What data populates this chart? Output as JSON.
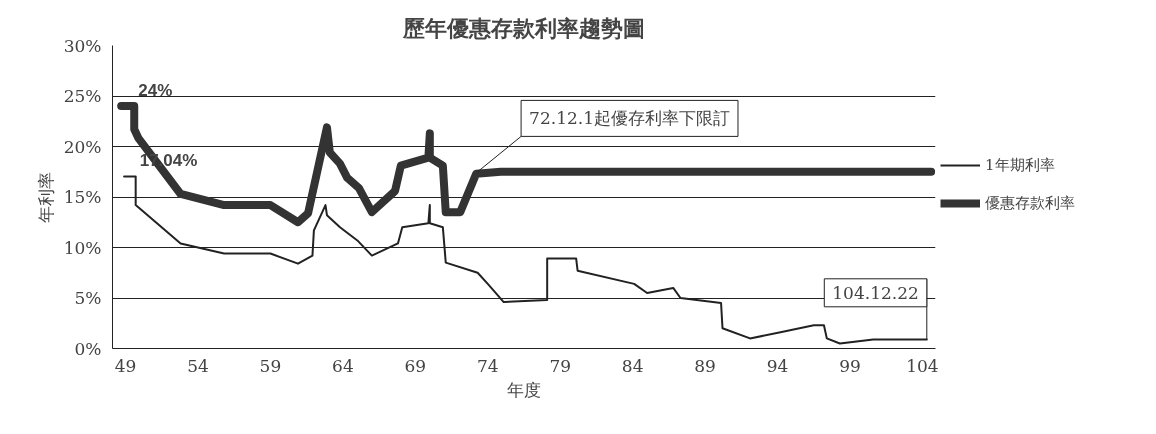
{
  "chart_data": {
    "type": "line",
    "title": "歷年優惠存款利率趨勢圖",
    "xlabel": "年度",
    "ylabel": "年利率",
    "xlim": [
      48.1,
      104.9
    ],
    "ylim": [
      0,
      30
    ],
    "xticks": [
      49,
      54,
      59,
      64,
      69,
      74,
      79,
      84,
      89,
      94,
      99,
      104
    ],
    "yticks": [
      {
        "value": 0,
        "label": "0%"
      },
      {
        "value": 5,
        "label": "5%"
      },
      {
        "value": 10,
        "label": "10%"
      },
      {
        "value": 15,
        "label": "15%"
      },
      {
        "value": 20,
        "label": "20%"
      },
      {
        "value": 25,
        "label": "25%"
      },
      {
        "value": 30,
        "label": "30%"
      }
    ],
    "grid": "y",
    "legend": "right",
    "marker": "none",
    "series": [
      {
        "name": "1年期利率",
        "color": "#222222",
        "x": [
          48.9,
          49.7,
          49.7,
          52.8,
          55.8,
          59.0,
          60.9,
          61.9,
          62.0,
          62.8,
          62.9,
          63.8,
          65.0,
          66.0,
          67.8,
          68.1,
          69.9,
          70.0,
          70.0,
          70.9,
          71.1,
          73.3,
          74.0,
          75.1,
          78.1,
          78.1,
          80.1,
          80.2,
          84.1,
          85.0,
          86.8,
          87.3,
          90.1,
          90.2,
          92.1,
          94.2,
          96.5,
          97.2,
          97.4,
          98.3,
          100.6,
          104.3
        ],
        "values": [
          17.04,
          17.04,
          14.2,
          10.4,
          9.4,
          9.4,
          8.4,
          9.2,
          11.7,
          14.2,
          13.2,
          12.0,
          10.7,
          9.2,
          10.4,
          12.0,
          12.4,
          14.2,
          12.4,
          12.0,
          8.5,
          7.5,
          6.4,
          4.6,
          4.8,
          8.9,
          8.9,
          7.7,
          6.4,
          5.5,
          6.0,
          5.0,
          4.5,
          2.0,
          1.0,
          1.6,
          2.3,
          2.3,
          1.0,
          0.5,
          0.9,
          0.9
        ]
      },
      {
        "name": "優惠存款利率",
        "color": "#333333",
        "x": [
          48.7,
          49.6,
          49.6,
          49.9,
          52.8,
          55.8,
          59.0,
          60.9,
          61.6,
          62.9,
          63.1,
          63.8,
          64.3,
          65.1,
          66.0,
          67.6,
          68.0,
          69.9,
          70.0,
          70.0,
          70.9,
          71.1,
          72.1,
          73.2,
          74.9,
          104.6
        ],
        "values": [
          24,
          24,
          21.7,
          20.8,
          15.3,
          14.2,
          14.2,
          12.5,
          13.4,
          21.9,
          19.4,
          18.3,
          16.9,
          15.9,
          13.5,
          15.6,
          18.1,
          18.9,
          21.3,
          18.9,
          18.1,
          13.5,
          13.5,
          17.3,
          17.5,
          17.5
        ]
      }
    ],
    "annotations": [
      {
        "text": "24%",
        "x": 49.6,
        "y": 24
      },
      {
        "text": "17.04%",
        "x": 49.7,
        "y": 17.04
      },
      {
        "text": "72.12.1起優存利率下限訂",
        "x": 73.3,
        "y": 17.5
      },
      {
        "text": "104.12.22",
        "x": 104.3,
        "y": 0.9
      }
    ]
  }
}
